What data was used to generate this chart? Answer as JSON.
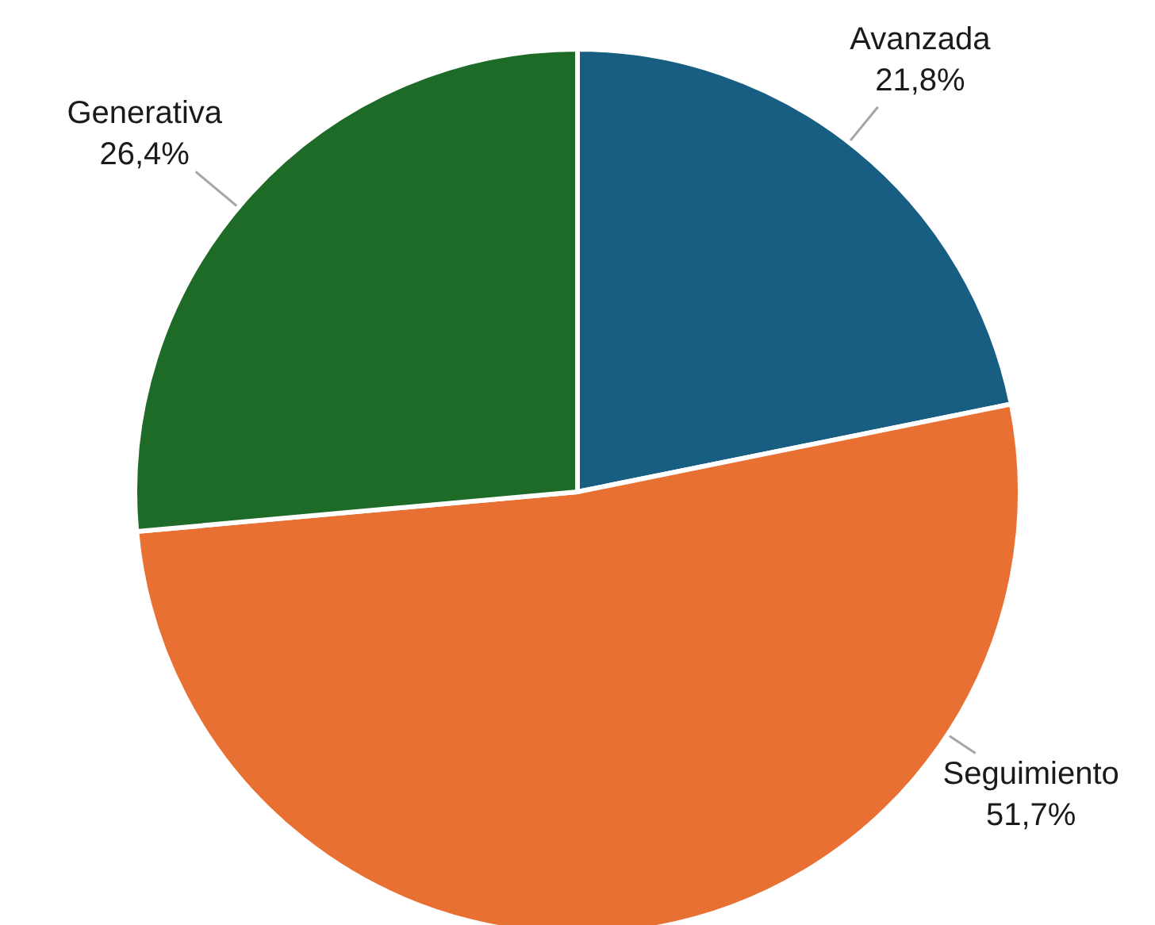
{
  "chart_data": {
    "type": "pie",
    "categories": [
      "Avanzada",
      "Seguimiento",
      "Generativa"
    ],
    "values": [
      21.8,
      51.7,
      26.4
    ],
    "colors": [
      "#175e82",
      "#e87033",
      "#1d6b27"
    ],
    "value_labels": [
      "21,8%",
      "51,7%",
      "26,4%"
    ],
    "legend": false
  }
}
